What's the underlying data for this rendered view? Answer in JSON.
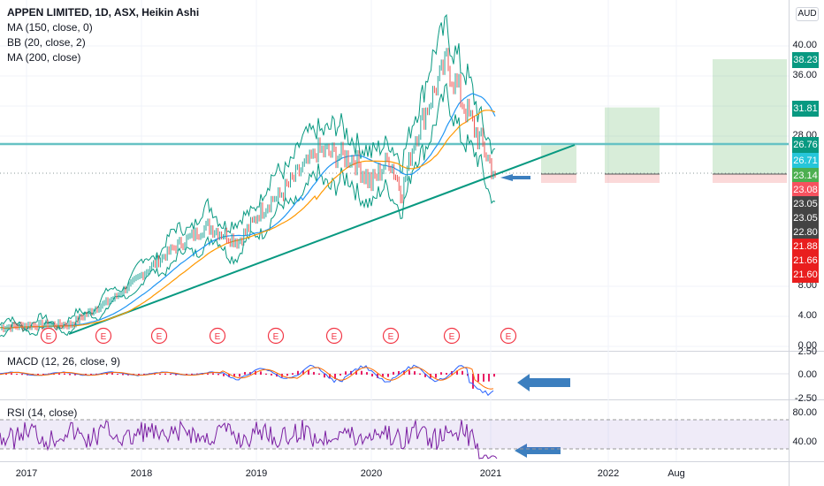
{
  "header": {
    "title": "APPEN LIMITED, 1D, ASX, Heikin Ashi",
    "indicators": [
      "MA (150, close, 0)",
      "BB (20, close, 2)",
      "MA (200, close)"
    ],
    "currency": "AUD"
  },
  "price_axis": {
    "ticks": [
      "40.00",
      "36.00",
      "32.00",
      "28.00",
      "8.00",
      "4.00",
      "0.00"
    ],
    "badges": [
      {
        "label": "38.23",
        "color": "#089981"
      },
      {
        "label": "31.81",
        "color": "#089981"
      },
      {
        "label": "26.76",
        "color": "#089981"
      },
      {
        "label": "26.71",
        "color": "#26c6da"
      },
      {
        "label": "23.14",
        "color": "#4caf50"
      },
      {
        "label": "23.08",
        "color": "#f7525f"
      },
      {
        "label": "23.05",
        "color": "#444444"
      },
      {
        "label": "23.05",
        "color": "#444444"
      },
      {
        "label": "22.80",
        "color": "#444444"
      },
      {
        "label": "21.88",
        "color": "#e91e1e"
      },
      {
        "label": "21.66",
        "color": "#e91e1e"
      },
      {
        "label": "21.60",
        "color": "#e91e1e"
      }
    ]
  },
  "macd_panel": {
    "title": "MACD (12, 26, close, 9)",
    "ticks": [
      "2.50",
      "0.00",
      "-2.50"
    ]
  },
  "rsi_panel": {
    "title": "RSI (14, close)",
    "ticks": [
      "80.00",
      "40.00"
    ]
  },
  "time_axis": [
    "2017",
    "2018",
    "2019",
    "2020",
    "2021",
    "2022",
    "Aug"
  ],
  "earnings_marker": "E",
  "colors": {
    "up": "#26a69a",
    "down": "#ef5350",
    "trend": "#089981",
    "ma150": "#2196f3",
    "ma200": "#ff9800",
    "bb": "#089981",
    "macd": "#2962ff",
    "signal": "#ff6d00",
    "rsi": "#7b1fa2",
    "arrow": "#3c7fbf"
  },
  "chart_data": [
    {
      "type": "line",
      "title": "APPEN LIMITED, 1D, ASX, Heikin Ashi",
      "x": [
        "2016-10",
        "2017-01",
        "2017-04",
        "2017-07",
        "2017-10",
        "2018-01",
        "2018-04",
        "2018-07",
        "2018-10",
        "2019-01",
        "2019-04",
        "2019-07",
        "2019-10",
        "2020-01",
        "2020-03",
        "2020-05",
        "2020-08",
        "2020-10",
        "2020-12",
        "2021-01"
      ],
      "series": [
        {
          "name": "Price",
          "values": [
            2.5,
            2.8,
            2.9,
            4.5,
            6.5,
            9.5,
            13,
            16,
            14,
            18,
            26,
            25,
            22,
            25,
            21,
            28,
            38,
            32,
            26,
            23
          ]
        }
      ],
      "ylim": [
        0,
        44
      ],
      "reference_lines": [
        26.76,
        23.14
      ],
      "position_targets": [
        31.81,
        38.23
      ],
      "stop_levels": [
        21.88,
        21.66,
        21.6
      ]
    },
    {
      "type": "line",
      "title": "MACD (12, 26, close, 9)",
      "ylim": [
        -2.5,
        2.5
      ]
    },
    {
      "type": "line",
      "title": "RSI (14, close)",
      "ylim": [
        20,
        85
      ]
    }
  ]
}
